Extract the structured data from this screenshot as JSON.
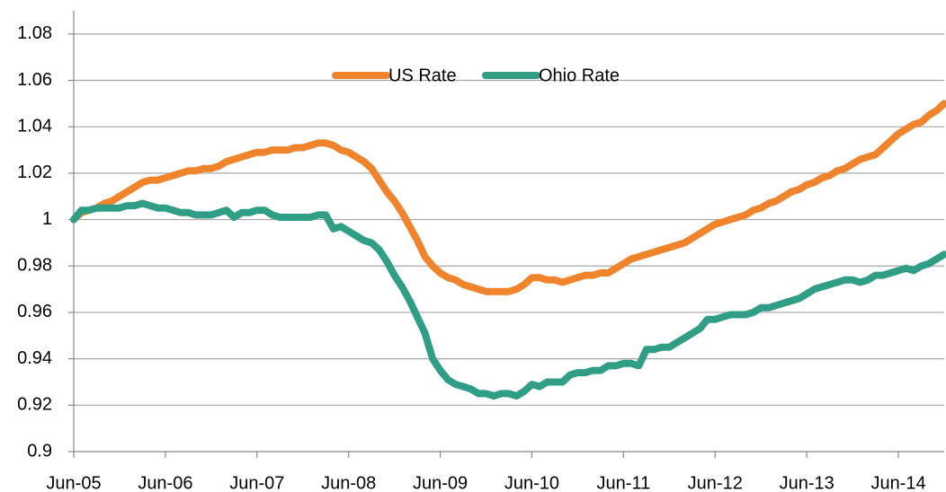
{
  "chart_data": {
    "type": "line",
    "categories": [
      "Jun-05",
      null,
      null,
      null,
      null,
      null,
      null,
      null,
      null,
      null,
      null,
      null,
      "Jun-06",
      null,
      null,
      null,
      null,
      null,
      null,
      null,
      null,
      null,
      null,
      null,
      "Jun-07",
      null,
      null,
      null,
      null,
      null,
      null,
      null,
      null,
      null,
      null,
      null,
      "Jun-08",
      null,
      null,
      null,
      null,
      null,
      null,
      null,
      null,
      null,
      null,
      null,
      "Jun-09",
      null,
      null,
      null,
      null,
      null,
      null,
      null,
      null,
      null,
      null,
      null,
      "Jun-10",
      null,
      null,
      null,
      null,
      null,
      null,
      null,
      null,
      null,
      null,
      null,
      "Jun-11",
      null,
      null,
      null,
      null,
      null,
      null,
      null,
      null,
      null,
      null,
      null,
      "Jun-12",
      null,
      null,
      null,
      null,
      null,
      null,
      null,
      null,
      null,
      null,
      null,
      "Jun-13",
      null,
      null,
      null,
      null,
      null,
      null,
      null,
      null,
      null,
      null,
      null,
      "Jun-14",
      null,
      null,
      null,
      null,
      null,
      null
    ],
    "series": [
      {
        "name": "US Rate",
        "color": "#f0842c",
        "values": [
          1.0,
          1.003,
          1.004,
          1.005,
          1.007,
          1.008,
          1.01,
          1.012,
          1.014,
          1.016,
          1.017,
          1.017,
          1.018,
          1.019,
          1.02,
          1.021,
          1.021,
          1.022,
          1.022,
          1.023,
          1.025,
          1.026,
          1.027,
          1.028,
          1.029,
          1.029,
          1.03,
          1.03,
          1.03,
          1.031,
          1.031,
          1.032,
          1.033,
          1.033,
          1.032,
          1.03,
          1.029,
          1.027,
          1.025,
          1.022,
          1.017,
          1.012,
          1.008,
          1.003,
          0.997,
          0.991,
          0.984,
          0.98,
          0.977,
          0.975,
          0.974,
          0.972,
          0.971,
          0.97,
          0.969,
          0.969,
          0.969,
          0.969,
          0.97,
          0.972,
          0.975,
          0.975,
          0.974,
          0.974,
          0.973,
          0.974,
          0.975,
          0.976,
          0.976,
          0.977,
          0.977,
          0.979,
          0.981,
          0.983,
          0.984,
          0.985,
          0.986,
          0.987,
          0.988,
          0.989,
          0.99,
          0.992,
          0.994,
          0.996,
          0.998,
          0.999,
          1.0,
          1.001,
          1.002,
          1.004,
          1.005,
          1.007,
          1.008,
          1.01,
          1.012,
          1.013,
          1.015,
          1.016,
          1.018,
          1.019,
          1.021,
          1.022,
          1.024,
          1.026,
          1.027,
          1.028,
          1.031,
          1.034,
          1.037,
          1.039,
          1.041,
          1.042,
          1.045,
          1.047,
          1.05
        ]
      },
      {
        "name": "Ohio Rate",
        "color": "#2f9e84",
        "values": [
          1.0,
          1.004,
          1.004,
          1.005,
          1.005,
          1.005,
          1.005,
          1.006,
          1.006,
          1.007,
          1.006,
          1.005,
          1.005,
          1.004,
          1.003,
          1.003,
          1.002,
          1.002,
          1.002,
          1.003,
          1.004,
          1.001,
          1.003,
          1.003,
          1.004,
          1.004,
          1.002,
          1.001,
          1.001,
          1.001,
          1.001,
          1.001,
          1.002,
          1.002,
          0.996,
          0.997,
          0.995,
          0.993,
          0.991,
          0.99,
          0.987,
          0.982,
          0.976,
          0.971,
          0.965,
          0.958,
          0.951,
          0.94,
          0.935,
          0.931,
          0.929,
          0.928,
          0.927,
          0.925,
          0.925,
          0.924,
          0.925,
          0.925,
          0.924,
          0.926,
          0.929,
          0.928,
          0.93,
          0.93,
          0.93,
          0.933,
          0.934,
          0.934,
          0.935,
          0.935,
          0.937,
          0.937,
          0.938,
          0.938,
          0.937,
          0.944,
          0.944,
          0.945,
          0.945,
          0.947,
          0.949,
          0.951,
          0.953,
          0.957,
          0.957,
          0.958,
          0.959,
          0.959,
          0.959,
          0.96,
          0.962,
          0.962,
          0.963,
          0.964,
          0.965,
          0.966,
          0.968,
          0.97,
          0.971,
          0.972,
          0.973,
          0.974,
          0.974,
          0.973,
          0.974,
          0.976,
          0.976,
          0.977,
          0.978,
          0.979,
          0.978,
          0.98,
          0.981,
          0.983,
          0.985
        ]
      }
    ],
    "ylim": [
      0.9,
      1.09
    ],
    "yticks": [
      0.9,
      0.92,
      0.94,
      0.96,
      0.98,
      1,
      1.02,
      1.04,
      1.06,
      1.08
    ],
    "grid": true,
    "legend": "top"
  }
}
